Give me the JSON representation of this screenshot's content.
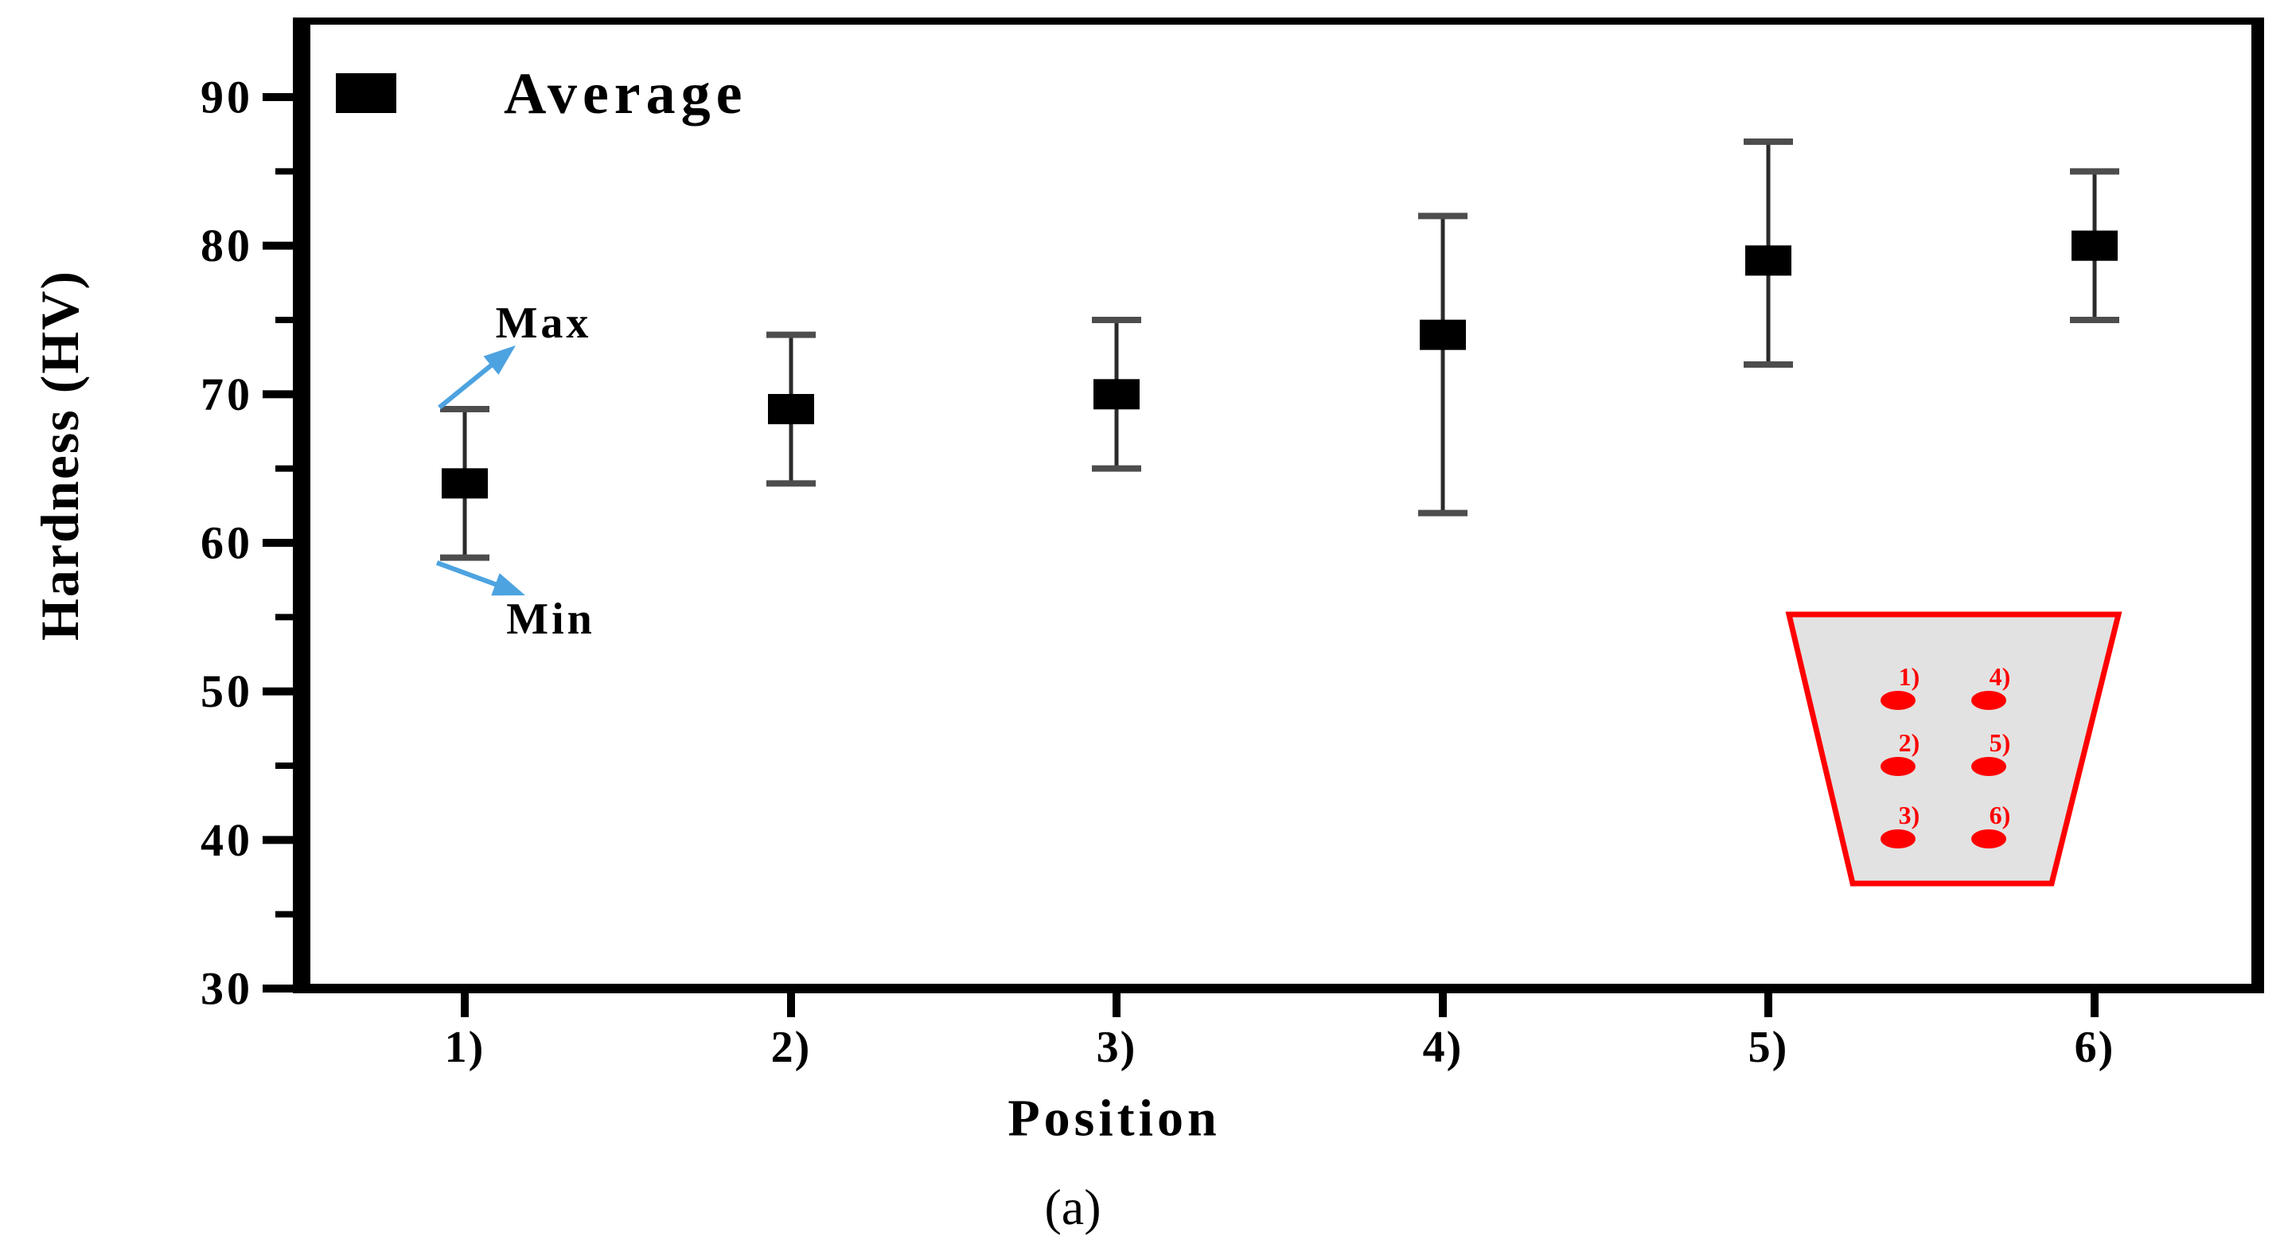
{
  "figure": {
    "caption": "(a)",
    "background_color": "#ffffff"
  },
  "chart_data": {
    "type": "scatter",
    "title": "",
    "xlabel": "Position",
    "ylabel": "Hardness (HV)",
    "categories": [
      "1)",
      "2)",
      "3)",
      "4)",
      "5)",
      "6)"
    ],
    "series": [
      {
        "name": "Average",
        "marker": "filled-square",
        "color": "#000000",
        "values": [
          64,
          69,
          70,
          74,
          79,
          80
        ],
        "error_min": [
          59,
          64,
          65,
          62,
          72,
          75
        ],
        "error_max": [
          69,
          74,
          75,
          82,
          87,
          85
        ]
      }
    ],
    "ylim": [
      30,
      95.5
    ],
    "yticks_major": [
      90,
      80,
      70,
      60,
      50,
      40,
      30
    ],
    "yticks_minor": [
      85,
      75,
      65,
      55,
      45,
      35
    ],
    "grid": false,
    "legend": {
      "position": "top-left",
      "label": "Average",
      "marker": "filled-square",
      "marker_color": "#000000"
    }
  },
  "annotations": {
    "max": {
      "label": "Max",
      "points_to": "top cap of position 1 error bar"
    },
    "min": {
      "label": "Min",
      "points_to": "bottom cap of position 1 error bar"
    },
    "text_color": "#000000",
    "arrow_color": "#4da3e0"
  },
  "inset": {
    "shape": "trapezoid",
    "border_color": "#ff0000",
    "fill_color": "#e2e2e2",
    "dot_color": "#ff0000",
    "label_color": "#ff0000",
    "left_column_labels": [
      "1)",
      "2)",
      "3)"
    ],
    "right_column_labels": [
      "4)",
      "5)",
      "6)"
    ]
  },
  "style_colors": {
    "frame": "#000000",
    "error_bar_line": "#2b2b2b",
    "error_bar_cap": "#4d4d4d",
    "tick": "#000000",
    "text": "#000000"
  }
}
